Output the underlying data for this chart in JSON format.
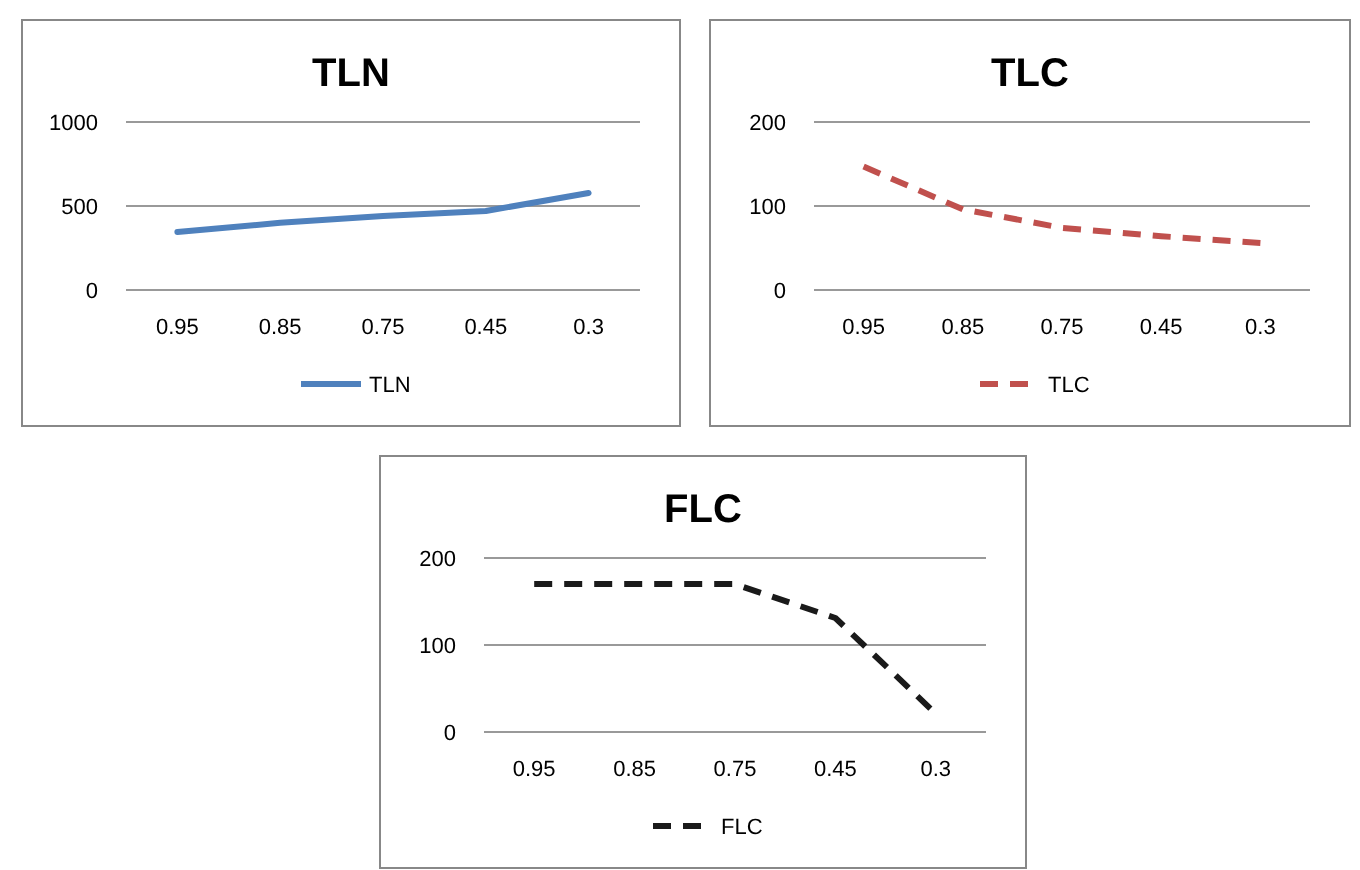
{
  "chart_data": [
    {
      "type": "line",
      "title": "TLN",
      "categories": [
        "0.95",
        "0.85",
        "0.75",
        "0.45",
        "0.3"
      ],
      "series": [
        {
          "name": "TLN",
          "color": "#4f81bd",
          "values": [
            345,
            400,
            440,
            470,
            577
          ],
          "line_style": "solid"
        }
      ],
      "ylim": [
        0,
        1000
      ],
      "yticks": [
        0,
        500,
        1000
      ],
      "grid": "y",
      "legend": "bottom"
    },
    {
      "type": "line",
      "title": "TLC",
      "categories": [
        "0.95",
        "0.85",
        "0.75",
        "0.45",
        "0.3"
      ],
      "series": [
        {
          "name": "TLC",
          "color": "#c0504d",
          "values": [
            147,
            96,
            74,
            64,
            56
          ],
          "line_style": "dashed"
        }
      ],
      "ylim": [
        0,
        200
      ],
      "yticks": [
        0,
        100,
        200
      ],
      "grid": "y",
      "legend": "bottom"
    },
    {
      "type": "line",
      "title": "FLC",
      "categories": [
        "0.95",
        "0.85",
        "0.75",
        "0.45",
        "0.3"
      ],
      "series": [
        {
          "name": "FLC",
          "color": "#1a1a1a",
          "values": [
            170,
            170,
            170,
            131,
            21
          ],
          "line_style": "dashed"
        }
      ],
      "ylim": [
        0,
        200
      ],
      "yticks": [
        0,
        100,
        200
      ],
      "grid": "y",
      "legend": "bottom"
    }
  ]
}
